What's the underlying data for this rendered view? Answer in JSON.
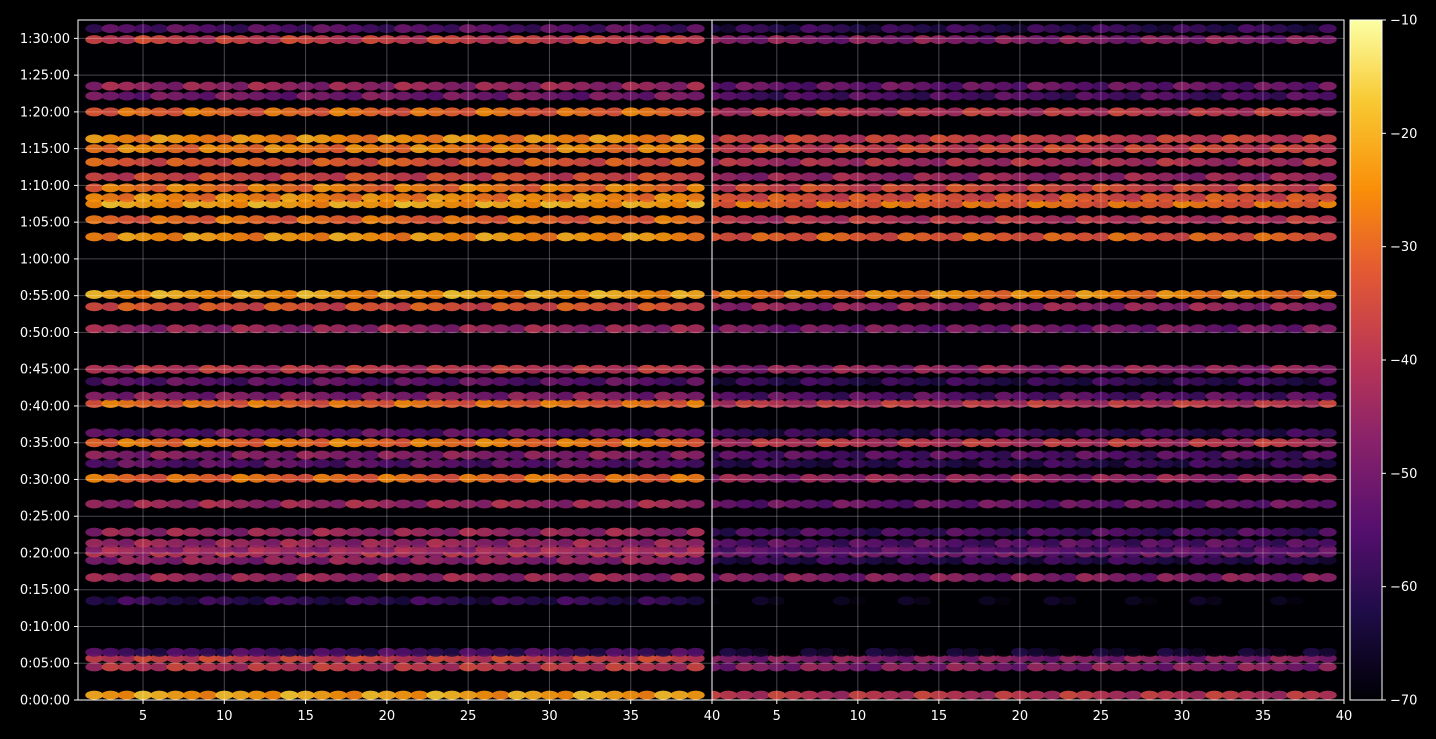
{
  "chart_data": {
    "type": "heatmap",
    "title": "",
    "panels": [
      {
        "name": "left",
        "xlim": [
          1,
          40
        ],
        "x_ticks": [
          5,
          10,
          15,
          20,
          25,
          30,
          35,
          40
        ],
        "columns_x_start": 2,
        "columns_x_end": 39,
        "columns_x_step": 1
      },
      {
        "name": "right",
        "xlim": [
          1,
          40
        ],
        "x_ticks": [
          5,
          10,
          15,
          20,
          25,
          30,
          35,
          40
        ],
        "columns_x_start": 1,
        "columns_x_end": 39,
        "columns_x_step": 1
      }
    ],
    "y_axis": {
      "unit": "seconds",
      "range": [
        0,
        5550
      ],
      "tick_values": [
        0,
        300,
        600,
        900,
        1200,
        1500,
        1800,
        2100,
        2400,
        2700,
        3000,
        3300,
        3600,
        3900,
        4200,
        4500,
        4800,
        5100,
        5400
      ],
      "tick_labels": [
        "0:00:00",
        "0:05:00",
        "0:10:00",
        "0:15:00",
        "0:20:00",
        "0:25:00",
        "0:30:00",
        "0:35:00",
        "0:40:00",
        "0:45:00",
        "0:50:00",
        "0:55:00",
        "1:00:00",
        "1:05:00",
        "1:10:00",
        "1:15:00",
        "1:20:00",
        "1:25:00",
        "1:30:00"
      ]
    },
    "colorbar": {
      "colormap": "inferno",
      "range": [
        -70,
        -10
      ],
      "ticks": [
        -70,
        -60,
        -50,
        -40,
        -30,
        -20,
        -10
      ],
      "tick_labels": [
        "−70",
        "−60",
        "−50",
        "−40",
        "−30",
        "−20",
        "−10"
      ]
    },
    "grid": true,
    "bands": [
      {
        "y": 40,
        "left": -22,
        "right": -40
      },
      {
        "y": 270,
        "left": -40,
        "right": -48
      },
      {
        "y": 340,
        "left": -38,
        "right": -48
      },
      {
        "y": 390,
        "left": -58,
        "right": -67
      },
      {
        "y": 810,
        "left": -60,
        "right": -70
      },
      {
        "y": 1000,
        "left": -45,
        "right": -48
      },
      {
        "y": 1140,
        "left": -47,
        "right": -60
      },
      {
        "y": 1200,
        "left": -42,
        "right": -52
      },
      {
        "y": 1230,
        "left": -45,
        "right": -55
      },
      {
        "y": 1280,
        "left": -45,
        "right": -55
      },
      {
        "y": 1370,
        "left": -45,
        "right": -57
      },
      {
        "y": 1600,
        "left": -44,
        "right": -52
      },
      {
        "y": 1810,
        "left": -30,
        "right": -46
      },
      {
        "y": 1930,
        "left": -54,
        "right": -60
      },
      {
        "y": 2000,
        "left": -48,
        "right": -55
      },
      {
        "y": 2100,
        "left": -28,
        "right": -40
      },
      {
        "y": 2180,
        "left": -54,
        "right": -60
      },
      {
        "y": 2420,
        "left": -30,
        "right": -40
      },
      {
        "y": 2480,
        "left": -48,
        "right": -55
      },
      {
        "y": 2600,
        "left": -54,
        "right": -60
      },
      {
        "y": 2700,
        "left": -40,
        "right": -46
      },
      {
        "y": 3030,
        "left": -45,
        "right": -50
      },
      {
        "y": 3210,
        "left": -34,
        "right": -46
      },
      {
        "y": 3310,
        "left": -22,
        "right": -26
      },
      {
        "y": 3780,
        "left": -24,
        "right": -32
      },
      {
        "y": 3920,
        "left": -30,
        "right": -40
      },
      {
        "y": 4050,
        "left": -22,
        "right": -30
      },
      {
        "y": 4100,
        "left": -26,
        "right": -34
      },
      {
        "y": 4180,
        "left": -28,
        "right": -36
      },
      {
        "y": 4270,
        "left": -36,
        "right": -45
      },
      {
        "y": 4390,
        "left": -33,
        "right": -42
      },
      {
        "y": 4500,
        "left": -27,
        "right": -37
      },
      {
        "y": 4580,
        "left": -25,
        "right": -38
      },
      {
        "y": 4800,
        "left": -30,
        "right": -40
      },
      {
        "y": 4930,
        "left": -50,
        "right": -56
      },
      {
        "y": 5010,
        "left": -45,
        "right": -52
      },
      {
        "y": 5390,
        "left": -38,
        "right": -48
      },
      {
        "y": 5480,
        "left": -55,
        "right": -60
      }
    ]
  }
}
